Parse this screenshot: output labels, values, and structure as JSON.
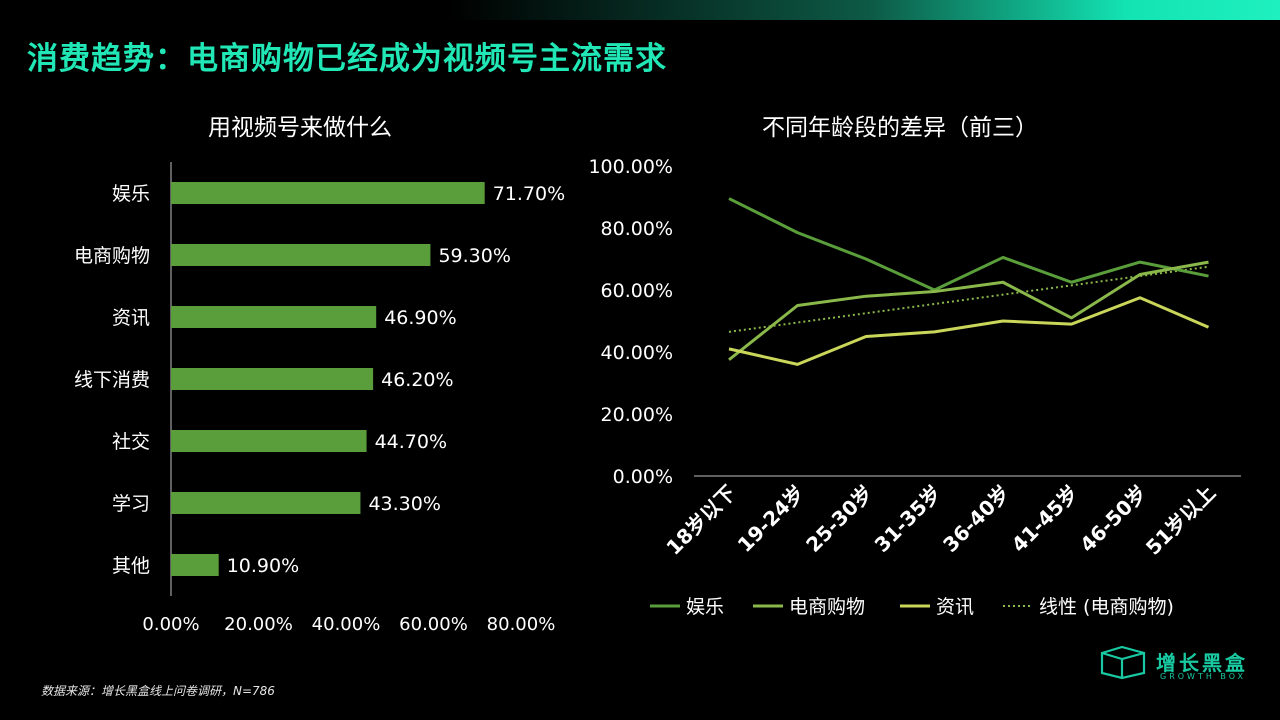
{
  "headline": "消费趋势：电商购物已经成为视频号主流需求",
  "source": "数据来源：增长黑盒线上问卷调研，N=786",
  "logo": {
    "name": "增长黑盒",
    "sub": "GROWTH BOX"
  },
  "colors": {
    "accent": "#21e6b5",
    "bar": "#5a9e3b",
    "ent": "#5a9e3b",
    "shop": "#8ab84a",
    "info": "#c9d65a",
    "trend": "#8ab84a"
  },
  "chart_data": [
    {
      "type": "bar",
      "orientation": "horizontal",
      "title": "用视频号来做什么",
      "categories": [
        "娱乐",
        "电商购物",
        "资讯",
        "线下消费",
        "社交",
        "学习",
        "其他"
      ],
      "values": [
        71.7,
        59.3,
        46.9,
        46.2,
        44.7,
        43.3,
        10.9
      ],
      "value_labels": [
        "71.70%",
        "59.30%",
        "46.90%",
        "46.20%",
        "44.70%",
        "43.30%",
        "10.90%"
      ],
      "xlim": [
        0,
        80
      ],
      "x_ticks": [
        "0.00%",
        "20.00%",
        "40.00%",
        "60.00%",
        "80.00%"
      ]
    },
    {
      "type": "line",
      "title": "不同年龄段的差异（前三）",
      "categories": [
        "18岁以下",
        "19-24岁",
        "25-30岁",
        "31-35岁",
        "36-40岁",
        "41-45岁",
        "46-50岁",
        "51岁以上"
      ],
      "ylim": [
        0,
        100
      ],
      "y_ticks": [
        "0.00%",
        "20.00%",
        "40.00%",
        "60.00%",
        "80.00%",
        "100.00%"
      ],
      "series": [
        {
          "name": "娱乐",
          "values": [
            89.5,
            78.5,
            70,
            60,
            70.5,
            62.5,
            69,
            64.5
          ]
        },
        {
          "name": "电商购物",
          "values": [
            37.5,
            55,
            58,
            59.5,
            62.5,
            51,
            65,
            69
          ]
        },
        {
          "name": "资讯",
          "values": [
            41,
            36,
            45,
            46.5,
            50,
            49,
            57.5,
            48
          ]
        }
      ],
      "trendline": {
        "name": "线性 (电商购物)",
        "values": [
          46.5,
          49.5,
          52.5,
          55.5,
          58.5,
          61.5,
          64.5,
          67.5
        ]
      },
      "legend_position": "bottom"
    }
  ]
}
